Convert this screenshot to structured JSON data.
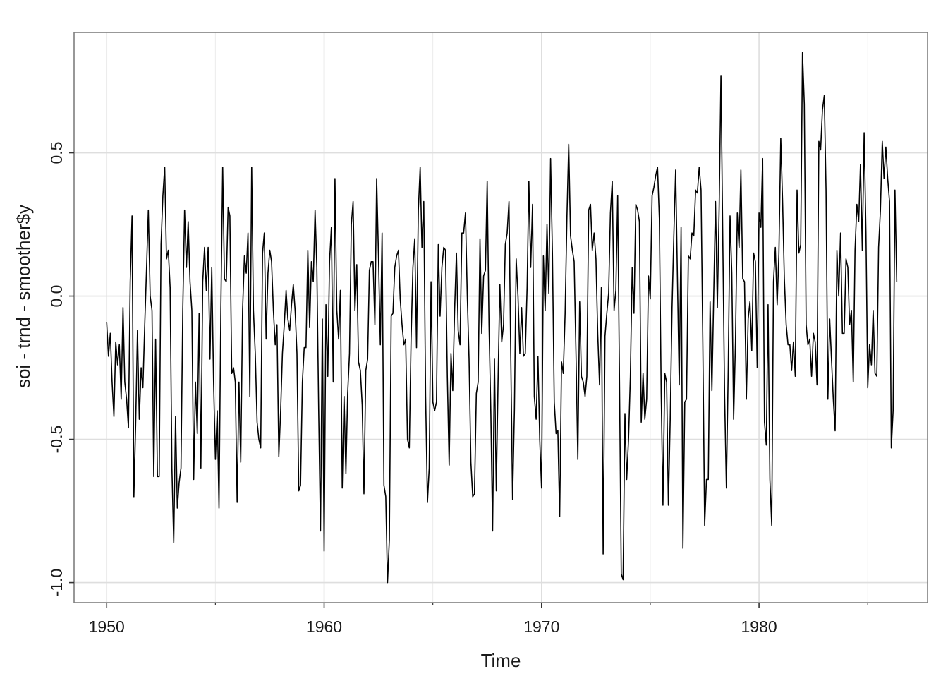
{
  "chart_data": {
    "type": "line",
    "title": "",
    "xlabel": "Time",
    "ylabel": "soi - trnd - smoother$y",
    "xlim": [
      1948.5,
      1987.75
    ],
    "ylim": [
      -1.07,
      0.92
    ],
    "x_ticks": [
      1950,
      1960,
      1970,
      1980
    ],
    "x_tick_labels": [
      "1950",
      "1960",
      "1970",
      "1980"
    ],
    "y_ticks": [
      -1.0,
      -0.5,
      0.0,
      0.5
    ],
    "y_tick_labels": [
      "-1.0",
      "-0.5",
      "0.0",
      "0.5"
    ],
    "grid": true,
    "legend": "none",
    "x_start": 1950.0,
    "x_step": 0.08333333,
    "series": [
      {
        "color": "#000000",
        "values": [
          -0.09,
          -0.21,
          -0.13,
          -0.3,
          -0.42,
          -0.16,
          -0.24,
          -0.17,
          -0.36,
          -0.04,
          -0.3,
          -0.36,
          -0.46,
          0.05,
          0.28,
          -0.7,
          -0.45,
          -0.12,
          -0.43,
          -0.25,
          -0.32,
          -0.1,
          0.1,
          0.3,
          0.0,
          -0.05,
          -0.63,
          -0.15,
          -0.63,
          -0.63,
          0.18,
          0.35,
          0.45,
          0.13,
          0.16,
          0.03,
          -0.6,
          -0.86,
          -0.42,
          -0.74,
          -0.65,
          -0.6,
          -0.05,
          0.3,
          0.1,
          0.26,
          0.05,
          -0.05,
          -0.64,
          -0.3,
          -0.48,
          -0.06,
          -0.6,
          0.05,
          0.17,
          0.02,
          0.17,
          -0.22,
          0.1,
          -0.3,
          -0.57,
          -0.4,
          -0.74,
          -0.05,
          0.45,
          0.06,
          0.05,
          0.31,
          0.28,
          -0.27,
          -0.25,
          -0.3,
          -0.72,
          -0.3,
          -0.58,
          -0.05,
          0.14,
          0.08,
          0.22,
          -0.35,
          0.45,
          -0.05,
          -0.2,
          -0.44,
          -0.5,
          -0.53,
          0.15,
          0.22,
          -0.15,
          0.08,
          0.16,
          0.12,
          -0.05,
          -0.17,
          -0.1,
          -0.56,
          -0.4,
          -0.2,
          -0.1,
          0.02,
          -0.08,
          -0.12,
          -0.03,
          0.04,
          -0.05,
          -0.2,
          -0.68,
          -0.66,
          -0.3,
          -0.18,
          -0.18,
          0.16,
          -0.11,
          0.12,
          0.05,
          0.3,
          0.1,
          -0.4,
          -0.82,
          -0.08,
          -0.89,
          -0.03,
          -0.28,
          0.12,
          0.24,
          -0.3,
          0.41,
          -0.05,
          -0.15,
          0.02,
          -0.67,
          -0.35,
          -0.62,
          -0.34,
          -0.2,
          0.25,
          0.33,
          -0.05,
          0.11,
          -0.23,
          -0.26,
          -0.38,
          -0.69,
          -0.26,
          -0.22,
          0.09,
          0.12,
          0.12,
          -0.1,
          0.41,
          0.14,
          -0.17,
          0.22,
          -0.66,
          -0.7,
          -1.0,
          -0.85,
          -0.07,
          -0.06,
          0.1,
          0.14,
          0.16,
          -0.01,
          -0.1,
          -0.17,
          -0.15,
          -0.5,
          -0.53,
          -0.15,
          0.1,
          0.2,
          -0.18,
          0.3,
          0.45,
          0.17,
          0.33,
          -0.35,
          -0.72,
          -0.6,
          0.05,
          -0.37,
          -0.4,
          -0.37,
          0.18,
          -0.07,
          0.1,
          0.17,
          0.16,
          -0.28,
          -0.59,
          -0.2,
          -0.33,
          -0.05,
          0.15,
          -0.12,
          -0.17,
          0.22,
          0.22,
          0.29,
          0.0,
          -0.22,
          -0.58,
          -0.7,
          -0.69,
          -0.34,
          -0.3,
          0.2,
          -0.13,
          0.07,
          0.09,
          0.4,
          -0.1,
          -0.41,
          -0.82,
          -0.22,
          -0.68,
          -0.3,
          0.04,
          -0.16,
          -0.1,
          0.18,
          0.22,
          0.33,
          -0.2,
          -0.71,
          -0.4,
          0.13,
          0.0,
          -0.2,
          -0.04,
          -0.21,
          -0.2,
          0.03,
          0.4,
          0.1,
          0.32,
          -0.35,
          -0.43,
          -0.21,
          -0.5,
          -0.67,
          0.14,
          -0.05,
          0.25,
          0.01,
          0.48,
          0.15,
          -0.37,
          -0.48,
          -0.47,
          -0.77,
          -0.23,
          -0.27,
          -0.06,
          0.28,
          0.53,
          0.21,
          0.16,
          0.12,
          -0.2,
          -0.57,
          -0.02,
          -0.28,
          -0.3,
          -0.35,
          -0.28,
          0.3,
          0.32,
          0.16,
          0.22,
          0.13,
          -0.13,
          -0.31,
          0.03,
          -0.9,
          -0.14,
          -0.06,
          0.01,
          0.29,
          0.4,
          -0.05,
          0.02,
          0.35,
          -0.3,
          -0.97,
          -0.99,
          -0.41,
          -0.64,
          -0.5,
          -0.28,
          0.1,
          -0.06,
          0.32,
          0.3,
          0.26,
          -0.44,
          -0.27,
          -0.43,
          -0.36,
          0.07,
          -0.01,
          0.35,
          0.38,
          0.42,
          0.45,
          0.27,
          -0.34,
          -0.73,
          -0.27,
          -0.3,
          -0.73,
          -0.43,
          -0.04,
          0.21,
          0.44,
          0.05,
          -0.31,
          0.24,
          -0.88,
          -0.37,
          -0.36,
          0.14,
          0.13,
          0.22,
          0.21,
          0.37,
          0.36,
          0.45,
          0.37,
          -0.16,
          -0.8,
          -0.64,
          -0.64,
          -0.02,
          -0.33,
          0.01,
          0.33,
          -0.04,
          0.31,
          0.77,
          0.2,
          -0.35,
          -0.67,
          -0.26,
          0.28,
          0.08,
          -0.43,
          -0.16,
          0.29,
          0.17,
          0.44,
          0.06,
          0.05,
          -0.36,
          -0.08,
          -0.02,
          -0.19,
          0.15,
          0.12,
          -0.25,
          0.29,
          0.24,
          0.48,
          -0.44,
          -0.52,
          -0.03,
          -0.64,
          -0.8,
          0.05,
          0.17,
          -0.03,
          0.15,
          0.55,
          0.33,
          0.06,
          -0.1,
          -0.17,
          -0.17,
          -0.26,
          -0.16,
          -0.28,
          0.37,
          0.15,
          0.18,
          0.85,
          0.67,
          -0.1,
          -0.17,
          -0.15,
          -0.28,
          -0.13,
          -0.16,
          -0.31,
          0.54,
          0.51,
          0.65,
          0.7,
          0.37,
          -0.36,
          -0.08,
          -0.22,
          -0.36,
          -0.47,
          0.16,
          0.0,
          0.22,
          -0.13,
          -0.13,
          0.13,
          0.1,
          -0.1,
          -0.05,
          -0.3,
          0.16,
          0.32,
          0.26,
          0.46,
          0.16,
          0.57,
          0.22,
          -0.32,
          -0.17,
          -0.24,
          -0.05,
          -0.27,
          -0.28,
          0.17,
          0.3,
          0.54,
          0.41,
          0.52,
          0.41,
          0.33,
          -0.53,
          -0.4,
          0.37,
          0.05
        ]
      }
    ]
  }
}
